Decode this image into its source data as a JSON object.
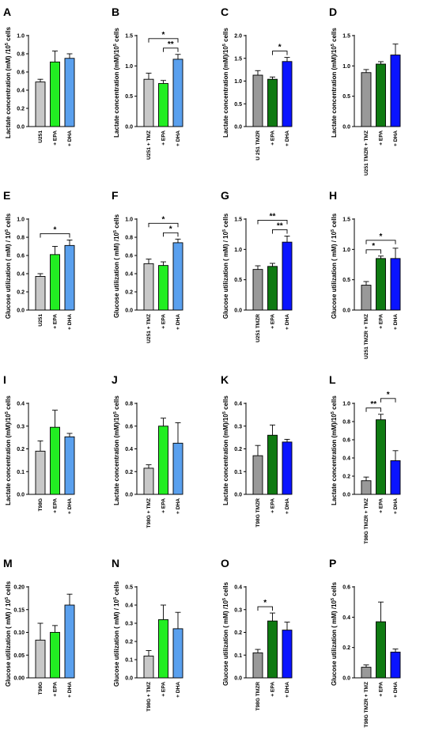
{
  "figure": {
    "colors": {
      "control": "#c8c8c8",
      "control_dark": "#999999",
      "epa_light": "#22ee22",
      "epa_dark": "#0f7a12",
      "dha_light": "#5aa0ee",
      "dha_dark": "#0a14ff"
    }
  },
  "chart_data": [
    {
      "panel": "A",
      "type": "bar",
      "ylabel": "Lactate concentration (mM) /10",
      "ylabel_sup": "5",
      "ylabel_tail": " cells",
      "ylim": [
        0,
        1.0
      ],
      "ticks": [
        "0.0",
        "0.2",
        "0.4",
        "0.6",
        "0.8",
        "1.0"
      ],
      "categories": [
        "U251",
        "+ EPA",
        "+ DHA"
      ],
      "values": [
        0.49,
        0.71,
        0.75
      ],
      "errors": [
        0.03,
        0.12,
        0.05
      ],
      "colors": [
        "#c8c8c8",
        "#22ee22",
        "#5aa0ee"
      ],
      "significance": []
    },
    {
      "panel": "B",
      "type": "bar",
      "ylabel": "Lactate concentration (mM)/10",
      "ylabel_sup": "5",
      "ylabel_tail": " cells",
      "ylim": [
        0,
        1.5
      ],
      "ticks": [
        "0.0",
        "0.5",
        "1.0",
        "1.5"
      ],
      "categories": [
        "U251 + TMZ",
        "+ EPA",
        "+ DHA"
      ],
      "values": [
        0.78,
        0.71,
        1.11
      ],
      "errors": [
        0.1,
        0.05,
        0.08
      ],
      "colors": [
        "#c8c8c8",
        "#22ee22",
        "#5aa0ee"
      ],
      "significance": [
        {
          "from": 0,
          "to": 2,
          "label": "*"
        },
        {
          "from": 1,
          "to": 2,
          "label": "**"
        }
      ]
    },
    {
      "panel": "C",
      "type": "bar",
      "ylabel": "Lactate concentration (mM)/10",
      "ylabel_sup": "5",
      "ylabel_tail": " cells",
      "ylim": [
        0,
        2.0
      ],
      "ticks": [
        "0.0",
        "0.5",
        "1.0",
        "1.5",
        "2.0"
      ],
      "categories": [
        "U 251 TMZR",
        "+ EPA",
        "+ DHA"
      ],
      "values": [
        1.13,
        1.04,
        1.43
      ],
      "errors": [
        0.1,
        0.05,
        0.09
      ],
      "colors": [
        "#999999",
        "#0f7a12",
        "#0a14ff"
      ],
      "significance": [
        {
          "from": 1,
          "to": 2,
          "label": "*"
        }
      ]
    },
    {
      "panel": "D",
      "type": "bar",
      "ylabel": "Lactate concentration (mM)/10",
      "ylabel_sup": "5",
      "ylabel_tail": " cells",
      "ylim": [
        0,
        1.5
      ],
      "ticks": [
        "0.0",
        "0.5",
        "1.0",
        "1.5"
      ],
      "categories": [
        "U251 TMZR + TMZ",
        "+ EPA",
        "+ DHA"
      ],
      "values": [
        0.89,
        1.03,
        1.18
      ],
      "errors": [
        0.05,
        0.04,
        0.18
      ],
      "colors": [
        "#999999",
        "#0f7a12",
        "#0a14ff"
      ],
      "significance": []
    },
    {
      "panel": "E",
      "type": "bar",
      "ylabel": "Glucose utilization ( mM) / 10",
      "ylabel_sup": "5",
      "ylabel_tail": " cells",
      "ylim": [
        0,
        1.0
      ],
      "ticks": [
        "0.0",
        "0.2",
        "0.4",
        "0.6",
        "0.8",
        "1.0"
      ],
      "categories": [
        "U251",
        "+ EPA",
        "+ DHA"
      ],
      "values": [
        0.37,
        0.61,
        0.71
      ],
      "errors": [
        0.03,
        0.09,
        0.06
      ],
      "colors": [
        "#c8c8c8",
        "#22ee22",
        "#5aa0ee"
      ],
      "significance": [
        {
          "from": 0,
          "to": 2,
          "label": "*"
        }
      ]
    },
    {
      "panel": "F",
      "type": "bar",
      "ylabel": "Glucose utilization ( mM) /10",
      "ylabel_sup": "5",
      "ylabel_tail": " cells",
      "ylim": [
        0,
        1.0
      ],
      "ticks": [
        "0.0",
        "0.2",
        "0.4",
        "0.6",
        "0.8",
        "1.0"
      ],
      "categories": [
        "U251 + TMZ",
        "+ EPA",
        "+ DHA"
      ],
      "values": [
        0.51,
        0.49,
        0.74
      ],
      "errors": [
        0.05,
        0.04,
        0.04
      ],
      "colors": [
        "#c8c8c8",
        "#22ee22",
        "#5aa0ee"
      ],
      "significance": [
        {
          "from": 0,
          "to": 2,
          "label": "*"
        },
        {
          "from": 1,
          "to": 2,
          "label": "*"
        }
      ]
    },
    {
      "panel": "G",
      "type": "bar",
      "ylabel": "Glucose utilization ( mM) / 10",
      "ylabel_sup": "5",
      "ylabel_tail": " cells",
      "ylim": [
        0,
        1.5
      ],
      "ticks": [
        "0.0",
        "0.5",
        "1.0",
        "1.5"
      ],
      "categories": [
        "U251 TMZR",
        "+ EPA",
        "+ DHA"
      ],
      "values": [
        0.67,
        0.72,
        1.12
      ],
      "errors": [
        0.06,
        0.05,
        0.1
      ],
      "colors": [
        "#999999",
        "#0f7a12",
        "#0a14ff"
      ],
      "significance": [
        {
          "from": 0,
          "to": 2,
          "label": "**"
        },
        {
          "from": 1,
          "to": 2,
          "label": "**"
        }
      ]
    },
    {
      "panel": "H",
      "type": "bar",
      "ylabel": "Glucose utilization ( mM) / 10",
      "ylabel_sup": "5",
      "ylabel_tail": " cells",
      "ylim": [
        0,
        1.5
      ],
      "ticks": [
        "0.0",
        "0.5",
        "1.0",
        "1.5"
      ],
      "categories": [
        "U251 TMZR + TMZ",
        "+ EPA",
        "+ DHA"
      ],
      "values": [
        0.41,
        0.85,
        0.85
      ],
      "errors": [
        0.06,
        0.04,
        0.17
      ],
      "colors": [
        "#999999",
        "#0f7a12",
        "#0a14ff"
      ],
      "significance": [
        {
          "from": 0,
          "to": 2,
          "label": "*"
        },
        {
          "from": 0,
          "to": 1,
          "label": "*"
        }
      ]
    },
    {
      "panel": "I",
      "type": "bar",
      "ylabel": "Lactate concentration (mM)/10",
      "ylabel_sup": "5",
      "ylabel_tail": " cells",
      "ylim": [
        0,
        0.4
      ],
      "ticks": [
        "0.0",
        "0.1",
        "0.2",
        "0.3",
        "0.4"
      ],
      "categories": [
        "T98G",
        "+ EPA",
        "+ DHA"
      ],
      "values": [
        0.19,
        0.295,
        0.253
      ],
      "errors": [
        0.045,
        0.075,
        0.015
      ],
      "colors": [
        "#c8c8c8",
        "#22ee22",
        "#5aa0ee"
      ],
      "significance": []
    },
    {
      "panel": "J",
      "type": "bar",
      "ylabel": "Lactate concentration (mM)/10",
      "ylabel_sup": "5",
      "ylabel_tail": " cells",
      "ylim": [
        0,
        0.8
      ],
      "ticks": [
        "0.0",
        "0.2",
        "0.4",
        "0.6",
        "0.8"
      ],
      "categories": [
        "T98G + TMZ",
        "+ EPA",
        "+ DHA"
      ],
      "values": [
        0.23,
        0.6,
        0.45
      ],
      "errors": [
        0.03,
        0.07,
        0.18
      ],
      "colors": [
        "#c8c8c8",
        "#22ee22",
        "#5aa0ee"
      ],
      "significance": []
    },
    {
      "panel": "K",
      "type": "bar",
      "ylabel": "Lactate concentration (mM)/10",
      "ylabel_sup": "5",
      "ylabel_tail": " cells",
      "ylim": [
        0,
        0.4
      ],
      "ticks": [
        "0.0",
        "0.1",
        "0.2",
        "0.3",
        "0.4"
      ],
      "categories": [
        "T98G TMZR",
        "+ EPA",
        "+ DHA"
      ],
      "values": [
        0.17,
        0.26,
        0.23
      ],
      "errors": [
        0.045,
        0.045,
        0.012
      ],
      "colors": [
        "#999999",
        "#0f7a12",
        "#0a14ff"
      ],
      "significance": []
    },
    {
      "panel": "L",
      "type": "bar",
      "ylabel": "Lactate concentration (mM)/10",
      "ylabel_sup": "5",
      "ylabel_tail": " cells",
      "ylim": [
        0,
        1.0
      ],
      "ticks": [
        "0.0",
        "0.2",
        "0.4",
        "0.6",
        "0.8",
        "1.0"
      ],
      "categories": [
        "T98G TMZR + TMZ",
        "+ EPA",
        "+ DHA"
      ],
      "values": [
        0.15,
        0.82,
        0.37
      ],
      "errors": [
        0.04,
        0.06,
        0.11
      ],
      "colors": [
        "#999999",
        "#0f7a12",
        "#0a14ff"
      ],
      "significance": [
        {
          "from": 0,
          "to": 1,
          "label": "**"
        },
        {
          "from": 1,
          "to": 2,
          "label": "*"
        }
      ]
    },
    {
      "panel": "M",
      "type": "bar",
      "ylabel": "Glucose utilization ( mM) / 10",
      "ylabel_sup": "5",
      "ylabel_tail": " cells",
      "ylim": [
        0,
        0.2
      ],
      "ticks": [
        "0.00",
        "0.05",
        "0.10",
        "0.15",
        "0.20"
      ],
      "categories": [
        "T98G",
        "+ EPA",
        "+ DHA"
      ],
      "values": [
        0.083,
        0.1,
        0.16
      ],
      "errors": [
        0.037,
        0.015,
        0.024
      ],
      "colors": [
        "#c8c8c8",
        "#22ee22",
        "#5aa0ee"
      ],
      "significance": []
    },
    {
      "panel": "N",
      "type": "bar",
      "ylabel": "Glucose utilization ( mM) / 10",
      "ylabel_sup": "5",
      "ylabel_tail": " cells",
      "ylim": [
        0,
        0.5
      ],
      "ticks": [
        "0.0",
        "0.1",
        "0.2",
        "0.3",
        "0.4",
        "0.5"
      ],
      "categories": [
        "T98G + TMZ",
        "+ EPA",
        "+ DHA"
      ],
      "values": [
        0.12,
        0.32,
        0.27
      ],
      "errors": [
        0.03,
        0.08,
        0.09
      ],
      "colors": [
        "#c8c8c8",
        "#22ee22",
        "#5aa0ee"
      ],
      "significance": []
    },
    {
      "panel": "O",
      "type": "bar",
      "ylabel": "Glucose utilization ( mM) /10",
      "ylabel_sup": "5",
      "ylabel_tail": " cells",
      "ylim": [
        0,
        0.4
      ],
      "ticks": [
        "0.0",
        "0.1",
        "0.2",
        "0.3",
        "0.4"
      ],
      "categories": [
        "T98G TMZR",
        "+ EPA",
        "+ DHA"
      ],
      "values": [
        0.11,
        0.25,
        0.21
      ],
      "errors": [
        0.015,
        0.035,
        0.035
      ],
      "colors": [
        "#999999",
        "#0f7a12",
        "#0a14ff"
      ],
      "significance": [
        {
          "from": 0,
          "to": 1,
          "label": "*"
        }
      ]
    },
    {
      "panel": "P",
      "type": "bar",
      "ylabel": "Glucose utilization ( mM) /10",
      "ylabel_sup": "5",
      "ylabel_tail": " cells",
      "ylim": [
        0,
        0.6
      ],
      "ticks": [
        "0.0",
        "0.2",
        "0.4",
        "0.6"
      ],
      "categories": [
        "T98G TMZR + TMZ",
        "+ EPA",
        "+ DHA"
      ],
      "values": [
        0.07,
        0.37,
        0.17
      ],
      "errors": [
        0.015,
        0.13,
        0.02
      ],
      "colors": [
        "#999999",
        "#0f7a12",
        "#0a14ff"
      ],
      "significance": []
    }
  ]
}
